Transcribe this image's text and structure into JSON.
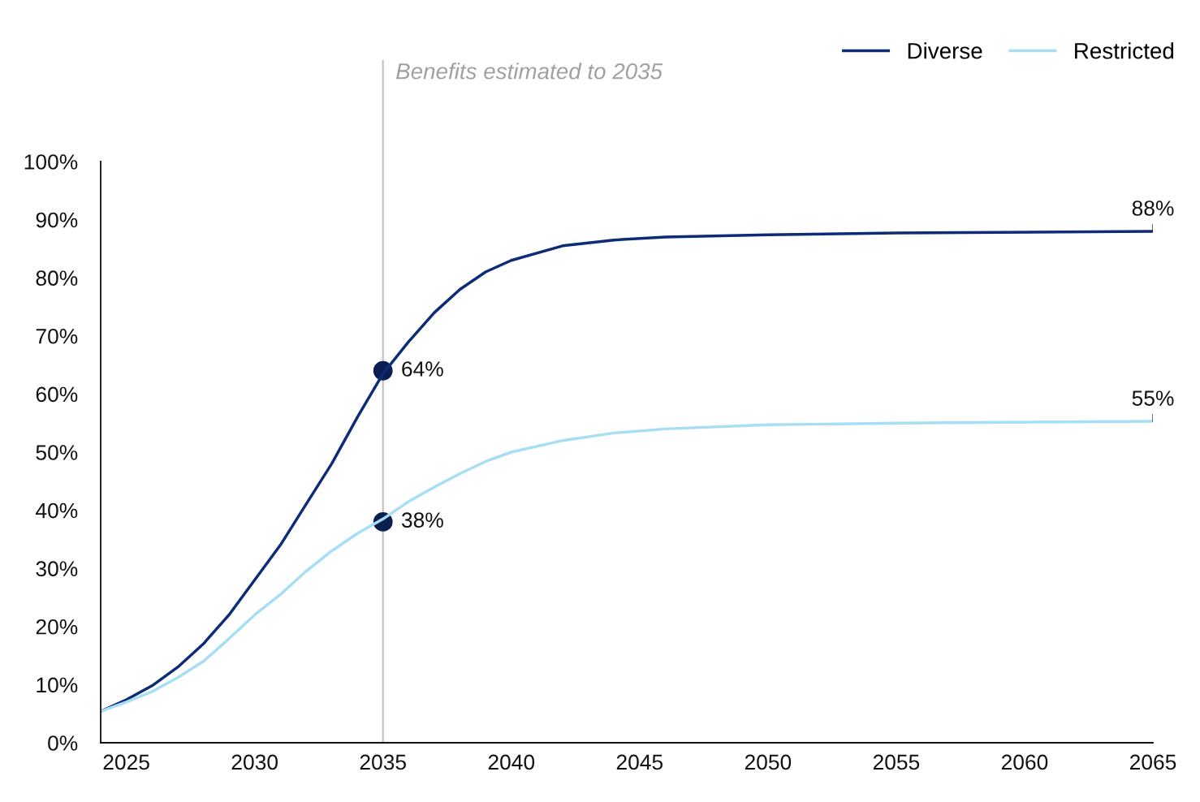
{
  "chart_data": {
    "type": "line",
    "xlim": [
      2024,
      2065
    ],
    "ylim": [
      0,
      100
    ],
    "xticks": [
      2025,
      2030,
      2035,
      2040,
      2045,
      2050,
      2055,
      2060,
      2065
    ],
    "yticks": [
      {
        "value": 0,
        "label": "0%"
      },
      {
        "value": 10,
        "label": "10%"
      },
      {
        "value": 20,
        "label": "20%"
      },
      {
        "value": 30,
        "label": "30%"
      },
      {
        "value": 40,
        "label": "40%"
      },
      {
        "value": 50,
        "label": "50%"
      },
      {
        "value": 60,
        "label": "60%"
      },
      {
        "value": 70,
        "label": "70%"
      },
      {
        "value": 80,
        "label": "80%"
      },
      {
        "value": 90,
        "label": "90%"
      },
      {
        "value": 100,
        "label": "100%"
      }
    ],
    "x": [
      2024,
      2025,
      2026,
      2027,
      2028,
      2029,
      2030,
      2031,
      2032,
      2033,
      2034,
      2035,
      2036,
      2037,
      2038,
      2039,
      2040,
      2042,
      2044,
      2046,
      2050,
      2055,
      2065
    ],
    "series": [
      {
        "name": "Diverse",
        "color": "#0d2b76",
        "values": [
          5.4,
          7.4,
          9.8,
          13,
          17,
          22,
          28,
          34,
          41,
          48,
          56,
          63.5,
          69,
          74,
          78,
          81,
          83,
          85.5,
          86.5,
          87,
          87.4,
          87.7,
          88
        ],
        "value_labels": [
          null,
          null,
          null,
          null,
          null,
          null,
          null,
          null,
          null,
          null,
          null,
          null,
          null,
          null,
          null,
          null,
          null,
          null,
          null,
          null,
          null,
          null,
          "88%"
        ]
      },
      {
        "name": "Restricted",
        "color": "#a6dff5",
        "values": [
          5.4,
          7,
          8.8,
          11.2,
          14,
          17.9,
          22,
          25.5,
          29.5,
          33,
          36,
          38.5,
          41.5,
          44,
          46.3,
          48.4,
          50,
          52,
          53.3,
          54,
          54.7,
          55,
          55.3
        ],
        "value_labels": [
          null,
          null,
          null,
          null,
          null,
          null,
          null,
          null,
          null,
          null,
          null,
          null,
          null,
          null,
          null,
          null,
          null,
          null,
          null,
          null,
          null,
          null,
          "55%"
        ]
      },
      {
        "type": "scatter",
        "color": "#0a1f4f",
        "x": [
          2035,
          2035
        ],
        "values": [
          64,
          38
        ],
        "value_labels": [
          "64%",
          "38%"
        ],
        "marker": "circle"
      }
    ],
    "ref_lines": [
      {
        "axis": "x",
        "value": 2035,
        "label": "Benefits estimated to 2035",
        "color": "#c0c0c0"
      }
    ],
    "legend": "top right",
    "grid": false
  }
}
